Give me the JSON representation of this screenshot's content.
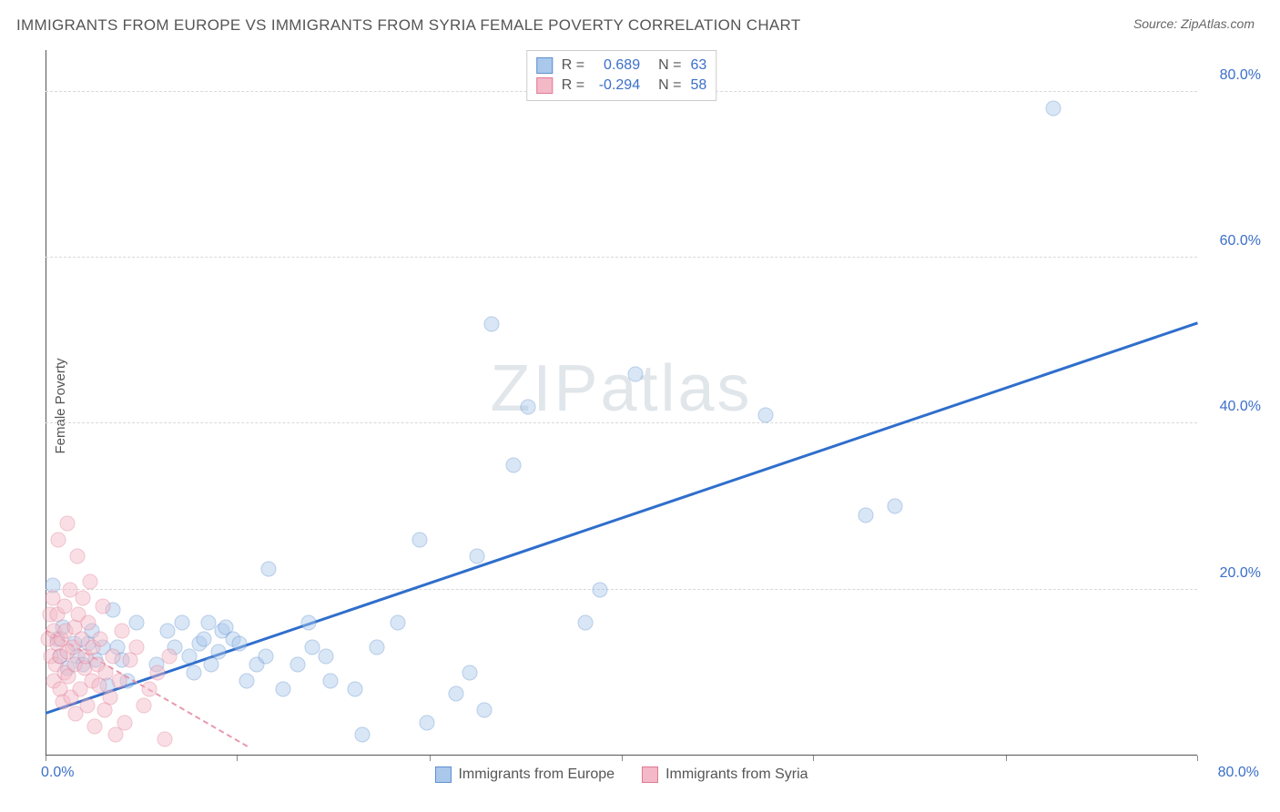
{
  "title": "IMMIGRANTS FROM EUROPE VS IMMIGRANTS FROM SYRIA FEMALE POVERTY CORRELATION CHART",
  "source": "Source: ZipAtlas.com",
  "y_axis_label": "Female Poverty",
  "watermark": "ZIPatlas",
  "chart": {
    "type": "scatter",
    "xlim": [
      0,
      80
    ],
    "ylim": [
      0,
      85
    ],
    "x_tick_labels": {
      "left": "0.0%",
      "right": "80.0%"
    },
    "x_tick_positions": [
      0,
      13.3,
      26.7,
      40,
      53.3,
      66.7,
      80
    ],
    "y_gridlines": [
      20,
      40,
      60,
      80
    ],
    "y_tick_labels": [
      "20.0%",
      "40.0%",
      "60.0%",
      "80.0%"
    ],
    "background_color": "#ffffff",
    "grid_color": "#d8d8d8",
    "axis_color": "#555555",
    "tick_label_color": "#3b6fc9",
    "tick_label_fontsize": 16,
    "title_color": "#555555",
    "title_fontsize": 17,
    "marker_radius": 8.5,
    "marker_opacity": 0.45,
    "series": [
      {
        "name": "Immigrants from Europe",
        "color_fill": "#a9c8ec",
        "color_stroke": "#5f8fce",
        "r": 0.689,
        "n": 63,
        "trend": {
          "x1": 0,
          "y1": 5,
          "x2": 80,
          "y2": 52,
          "color": "#2f6ecc",
          "width": 2.5,
          "style": "solid"
        },
        "points": [
          [
            0.5,
            20.5
          ],
          [
            0.8,
            14
          ],
          [
            1,
            12
          ],
          [
            1.2,
            15.5
          ],
          [
            1.5,
            10.5
          ],
          [
            2,
            13.5
          ],
          [
            2.2,
            12
          ],
          [
            2.6,
            11
          ],
          [
            3,
            13.5
          ],
          [
            3.2,
            15
          ],
          [
            3.5,
            11.5
          ],
          [
            4,
            13
          ],
          [
            4.3,
            8.5
          ],
          [
            4.7,
            17.5
          ],
          [
            5,
            13
          ],
          [
            5.3,
            11.5
          ],
          [
            5.7,
            9
          ],
          [
            6.3,
            16
          ],
          [
            7.7,
            11
          ],
          [
            8.5,
            15
          ],
          [
            9,
            13
          ],
          [
            9.5,
            16
          ],
          [
            10,
            12
          ],
          [
            10.3,
            10
          ],
          [
            10.7,
            13.5
          ],
          [
            11,
            14
          ],
          [
            11.3,
            16
          ],
          [
            11.5,
            11
          ],
          [
            12,
            12.5
          ],
          [
            12.3,
            15
          ],
          [
            12.5,
            15.5
          ],
          [
            13,
            14
          ],
          [
            13.5,
            13.5
          ],
          [
            14,
            9
          ],
          [
            14.7,
            11
          ],
          [
            15.5,
            22.5
          ],
          [
            15.3,
            12
          ],
          [
            16.5,
            8
          ],
          [
            17.5,
            11
          ],
          [
            18.5,
            13
          ],
          [
            18.3,
            16
          ],
          [
            19.5,
            12
          ],
          [
            19.8,
            9
          ],
          [
            21.5,
            8
          ],
          [
            22,
            2.5
          ],
          [
            23,
            13
          ],
          [
            24.5,
            16
          ],
          [
            26,
            26
          ],
          [
            26.5,
            4
          ],
          [
            28.5,
            7.5
          ],
          [
            29.5,
            10
          ],
          [
            30,
            24
          ],
          [
            30.5,
            5.5
          ],
          [
            31,
            52
          ],
          [
            32.5,
            35
          ],
          [
            33.5,
            42
          ],
          [
            37.5,
            16
          ],
          [
            38.5,
            20
          ],
          [
            41,
            46
          ],
          [
            50,
            41
          ],
          [
            57,
            29
          ],
          [
            59,
            30
          ],
          [
            70,
            78
          ]
        ]
      },
      {
        "name": "Immigrants from Syria",
        "color_fill": "#f3b9c6",
        "color_stroke": "#e17a95",
        "r": -0.294,
        "n": 58,
        "trend": {
          "x1": 0,
          "y1": 15,
          "x2": 14,
          "y2": 1,
          "color": "#e89aae",
          "width": 2,
          "style": "dashed"
        },
        "points": [
          [
            0.2,
            14
          ],
          [
            0.3,
            17
          ],
          [
            0.4,
            12
          ],
          [
            0.5,
            19
          ],
          [
            0.6,
            9
          ],
          [
            0.6,
            15
          ],
          [
            0.7,
            11
          ],
          [
            0.8,
            13.5
          ],
          [
            0.8,
            17
          ],
          [
            0.9,
            26
          ],
          [
            1,
            8
          ],
          [
            1,
            12
          ],
          [
            1.1,
            14
          ],
          [
            1.2,
            6.5
          ],
          [
            1.3,
            18
          ],
          [
            1.3,
            10
          ],
          [
            1.4,
            15
          ],
          [
            1.5,
            28
          ],
          [
            1.5,
            12.5
          ],
          [
            1.6,
            9.5
          ],
          [
            1.7,
            20
          ],
          [
            1.8,
            7
          ],
          [
            1.9,
            13
          ],
          [
            2,
            15.5
          ],
          [
            2,
            11
          ],
          [
            2.1,
            5
          ],
          [
            2.2,
            24
          ],
          [
            2.3,
            17
          ],
          [
            2.4,
            8
          ],
          [
            2.5,
            14
          ],
          [
            2.6,
            19
          ],
          [
            2.7,
            10.5
          ],
          [
            2.8,
            12
          ],
          [
            2.9,
            6
          ],
          [
            3,
            16
          ],
          [
            3.1,
            21
          ],
          [
            3.2,
            9
          ],
          [
            3.3,
            13
          ],
          [
            3.4,
            3.5
          ],
          [
            3.6,
            11
          ],
          [
            3.7,
            8.5
          ],
          [
            3.8,
            14
          ],
          [
            4,
            18
          ],
          [
            4.1,
            5.5
          ],
          [
            4.2,
            10
          ],
          [
            4.5,
            7
          ],
          [
            4.7,
            12
          ],
          [
            4.9,
            2.5
          ],
          [
            5.1,
            9
          ],
          [
            5.3,
            15
          ],
          [
            5.5,
            4
          ],
          [
            5.9,
            11.5
          ],
          [
            6.3,
            13
          ],
          [
            6.8,
            6
          ],
          [
            7.2,
            8
          ],
          [
            7.8,
            10
          ],
          [
            8.3,
            2
          ],
          [
            8.6,
            12
          ]
        ]
      }
    ]
  },
  "legend_bottom": [
    {
      "label": "Immigrants from Europe",
      "fill": "#a9c8ec",
      "stroke": "#5f8fce"
    },
    {
      "label": "Immigrants from Syria",
      "fill": "#f3b9c6",
      "stroke": "#e17a95"
    }
  ]
}
